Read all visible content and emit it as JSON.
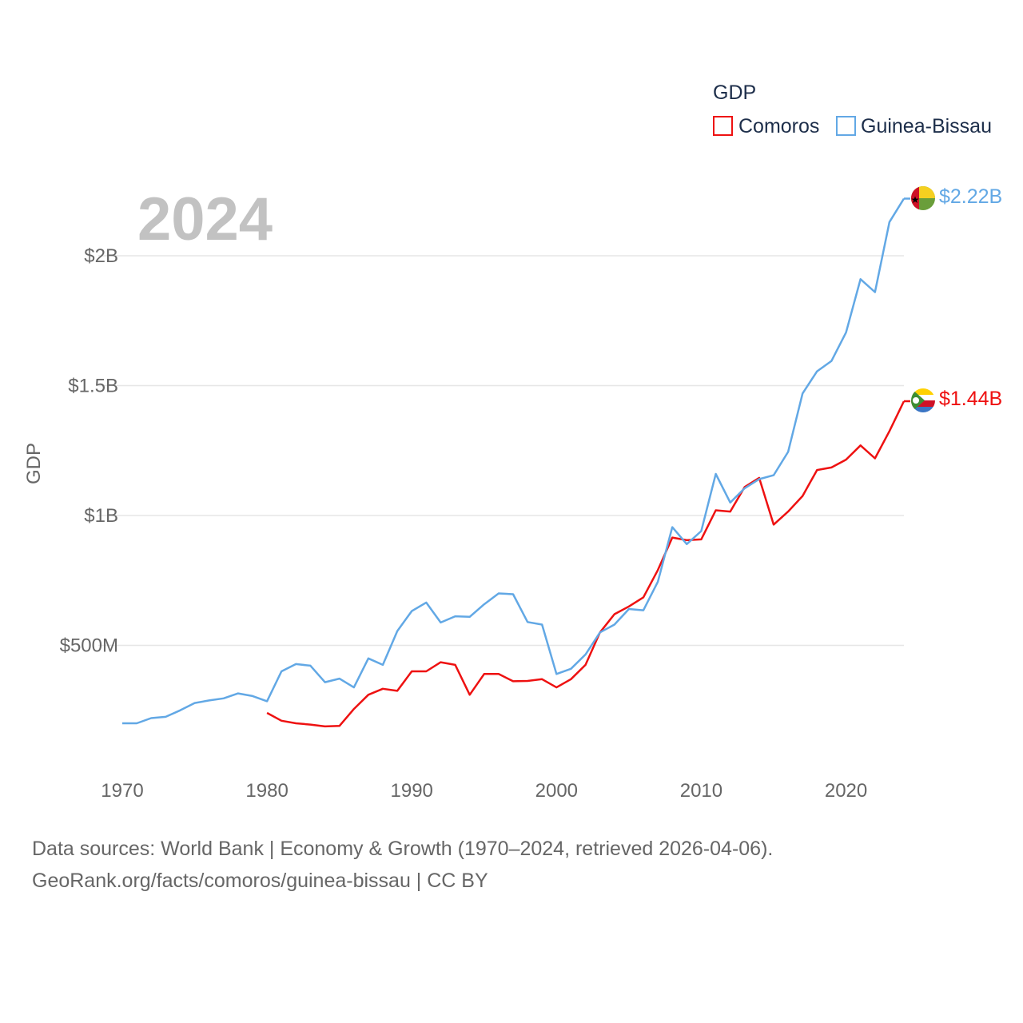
{
  "chart_data": {
    "type": "line",
    "year_label": "2024",
    "ylabel": "GDP",
    "xlim": [
      1970,
      2024
    ],
    "ylim": [
      0,
      2300000000
    ],
    "x_ticks": [
      {
        "value": 1970,
        "label": "1970"
      },
      {
        "value": 1980,
        "label": "1980"
      },
      {
        "value": 1990,
        "label": "1990"
      },
      {
        "value": 2000,
        "label": "2000"
      },
      {
        "value": 2010,
        "label": "2010"
      },
      {
        "value": 2020,
        "label": "2020"
      }
    ],
    "y_ticks": [
      {
        "value": 500000000,
        "label": "$500M"
      },
      {
        "value": 1000000000,
        "label": "$1B"
      },
      {
        "value": 1500000000,
        "label": "$1.5B"
      },
      {
        "value": 2000000000,
        "label": "$2B"
      }
    ],
    "legend": {
      "title": "GDP",
      "position": "top-right"
    },
    "series": [
      {
        "name": "Comoros",
        "color": "#ee1111",
        "end_label": "$1.44B",
        "x": [
          1980,
          1981,
          1982,
          1983,
          1984,
          1985,
          1986,
          1987,
          1988,
          1989,
          1990,
          1991,
          1992,
          1993,
          1994,
          1995,
          1996,
          1997,
          1998,
          1999,
          2000,
          2001,
          2002,
          2003,
          2004,
          2005,
          2006,
          2007,
          2008,
          2009,
          2010,
          2011,
          2012,
          2013,
          2014,
          2015,
          2016,
          2017,
          2018,
          2019,
          2020,
          2021,
          2022,
          2023,
          2024
        ],
        "values": [
          240000000,
          210000000,
          200000000,
          195000000,
          188000000,
          190000000,
          255000000,
          310000000,
          333000000,
          325000000,
          400000000,
          400000000,
          435000000,
          425000000,
          310000000,
          390000000,
          390000000,
          362000000,
          363000000,
          370000000,
          338000000,
          370000000,
          425000000,
          550000000,
          620000000,
          650000000,
          685000000,
          790000000,
          915000000,
          905000000,
          908000000,
          1020000000,
          1015000000,
          1110000000,
          1145000000,
          965000000,
          1015000000,
          1075000000,
          1175000000,
          1185000000,
          1215000000,
          1270000000,
          1220000000,
          1325000000,
          1440000000
        ]
      },
      {
        "name": "Guinea-Bissau",
        "color": "#62a8e5",
        "end_label": "$2.22B",
        "x": [
          1970,
          1971,
          1972,
          1973,
          1974,
          1975,
          1976,
          1977,
          1978,
          1979,
          1980,
          1981,
          1982,
          1983,
          1984,
          1985,
          1986,
          1987,
          1988,
          1989,
          1990,
          1991,
          1992,
          1993,
          1994,
          1995,
          1996,
          1997,
          1998,
          1999,
          2000,
          2001,
          2002,
          2003,
          2004,
          2005,
          2006,
          2007,
          2008,
          2009,
          2010,
          2011,
          2012,
          2013,
          2014,
          2015,
          2016,
          2017,
          2018,
          2019,
          2020,
          2021,
          2022,
          2023,
          2024
        ],
        "values": [
          200000000,
          200000000,
          220000000,
          225000000,
          250000000,
          278000000,
          288000000,
          296000000,
          315000000,
          305000000,
          285000000,
          400000000,
          428000000,
          422000000,
          358000000,
          372000000,
          338000000,
          450000000,
          425000000,
          555000000,
          632000000,
          665000000,
          588000000,
          612000000,
          610000000,
          658000000,
          700000000,
          697000000,
          590000000,
          580000000,
          390000000,
          410000000,
          465000000,
          550000000,
          580000000,
          640000000,
          635000000,
          745000000,
          955000000,
          890000000,
          940000000,
          1160000000,
          1050000000,
          1105000000,
          1140000000,
          1155000000,
          1245000000,
          1470000000,
          1555000000,
          1595000000,
          1705000000,
          1910000000,
          1860000000,
          2130000000,
          2220000000
        ]
      }
    ],
    "source_lines": [
      "Data sources: World Bank | Economy & Growth (1970–2024, retrieved 2026-04-06).",
      "GeoRank.org/facts/comoros/guinea-bissau | CC BY"
    ]
  }
}
